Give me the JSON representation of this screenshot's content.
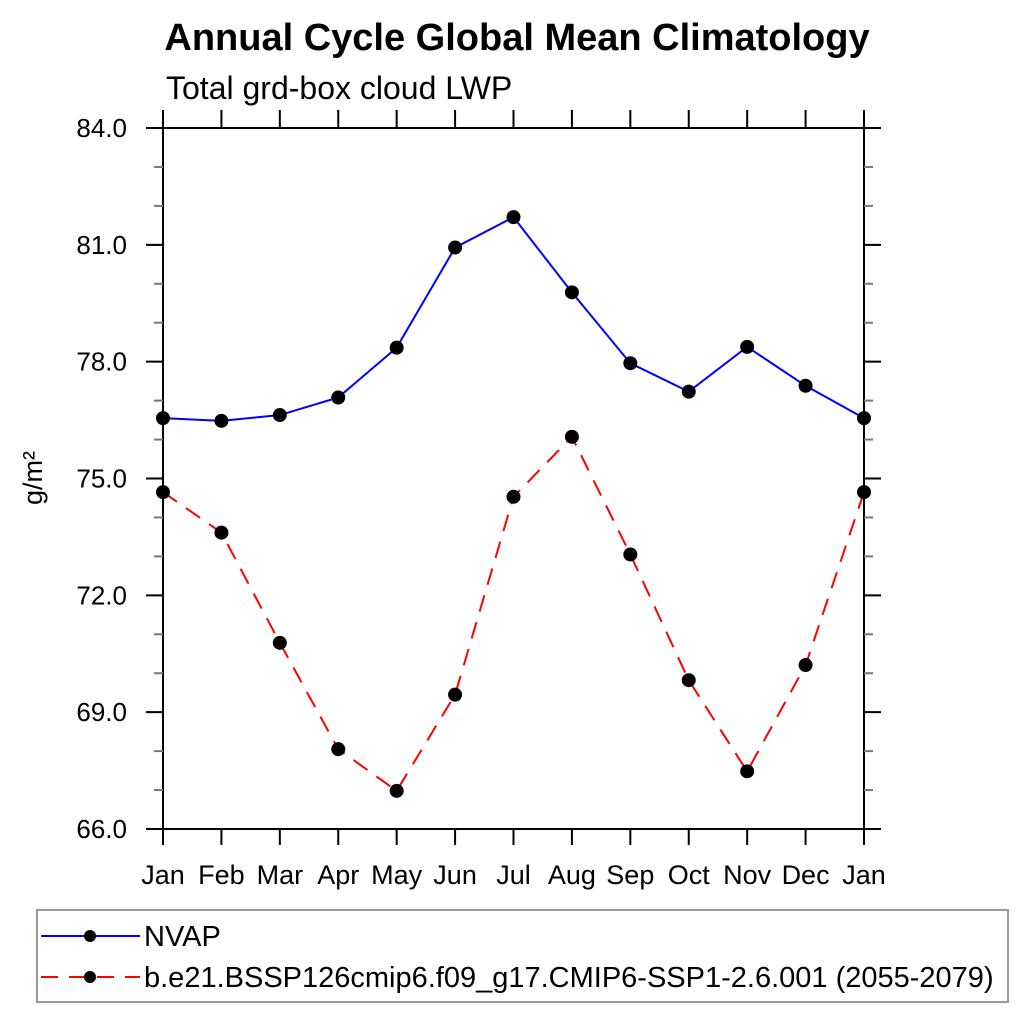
{
  "chart_data": {
    "type": "line",
    "title": "Annual Cycle Global Mean Climatology",
    "subtitle": "Total grd-box cloud LWP",
    "ylabel": "g/m²",
    "xlabel": "",
    "categories": [
      "Jan",
      "Feb",
      "Mar",
      "Apr",
      "May",
      "Jun",
      "Jul",
      "Aug",
      "Sep",
      "Oct",
      "Nov",
      "Dec",
      "Jan"
    ],
    "ylim": [
      66.0,
      84.0
    ],
    "y_major_step": 3.0,
    "y_minor_step": 1.0,
    "y_tick_decimals": 1,
    "y_major_tick_labels": [
      "66.0",
      "69.0",
      "72.0",
      "75.0",
      "78.0",
      "81.0",
      "84.0"
    ],
    "grid": false,
    "legend_position": "bottom",
    "colors": {
      "axis": "#000000",
      "minor_tick": "#777777",
      "marker": "#000000",
      "legend_border": "#999999",
      "background": "#ffffff"
    },
    "series": [
      {
        "name": "NVAP",
        "color": "#0000ff",
        "line_style": "solid",
        "marker": "filled-circle",
        "marker_color": "#000000",
        "values": [
          76.55,
          76.48,
          76.63,
          77.08,
          78.36,
          80.93,
          81.71,
          79.78,
          77.96,
          77.23,
          78.38,
          77.38,
          76.55
        ]
      },
      {
        "name": "b.e21.BSSP126cmip6.f09_g17.CMIP6-SSP1-2.6.001 (2055-2079)",
        "color": "#ff0000",
        "line_style": "dashed",
        "marker": "filled-circle",
        "marker_color": "#000000",
        "values": [
          74.65,
          73.61,
          70.78,
          68.05,
          66.98,
          69.45,
          74.53,
          76.07,
          73.05,
          69.82,
          67.48,
          70.21,
          74.65
        ]
      }
    ]
  }
}
